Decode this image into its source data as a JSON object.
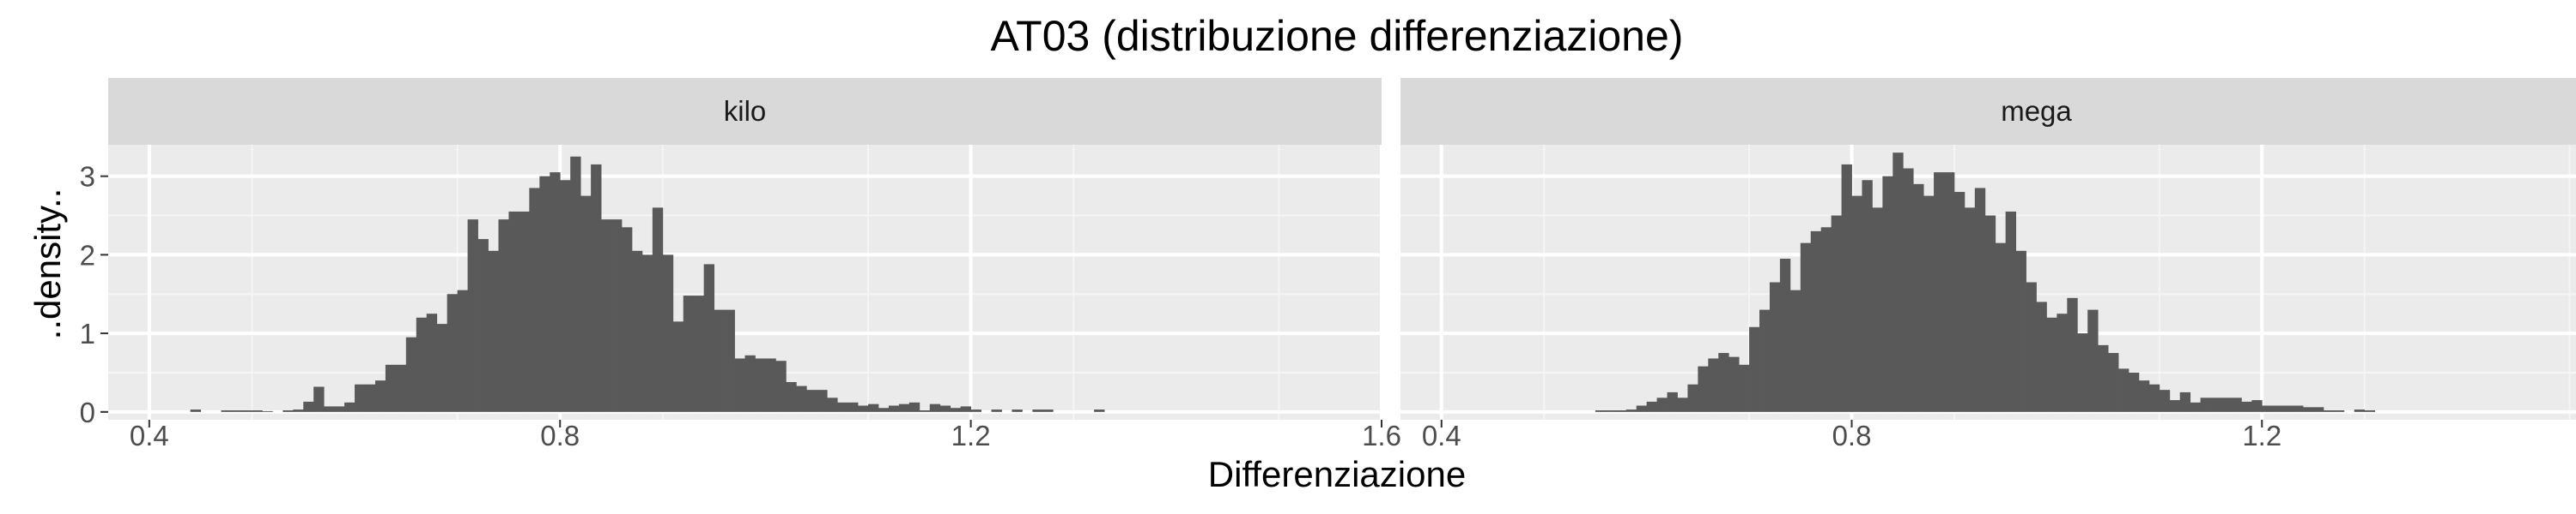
{
  "chart_data": {
    "type": "bar",
    "title": "AT03 (distribuzione differenziazione)",
    "xlabel": "Differenziazione",
    "ylabel": "..density..",
    "x_ticks": [
      "0.4",
      "0.8",
      "1.2",
      "1.6"
    ],
    "y_ticks": [
      "0",
      "1",
      "2",
      "3"
    ],
    "xlim": [
      0.36,
      1.6
    ],
    "ylim": [
      -0.1,
      3.4
    ],
    "bin_width": 0.01,
    "grid": true,
    "bar_color": "#595959",
    "panel_background": "#ebebeb",
    "strip_background": "#d9d9d9",
    "facets": [
      {
        "name": "kilo",
        "bins": [
          [
            0.44,
            0.03
          ],
          [
            0.47,
            0.02
          ],
          [
            0.48,
            0.02
          ],
          [
            0.49,
            0.02
          ],
          [
            0.5,
            0.02
          ],
          [
            0.51,
            0.01
          ],
          [
            0.53,
            0.02
          ],
          [
            0.54,
            0.03
          ],
          [
            0.55,
            0.13
          ],
          [
            0.56,
            0.32
          ],
          [
            0.57,
            0.07
          ],
          [
            0.58,
            0.07
          ],
          [
            0.59,
            0.12
          ],
          [
            0.6,
            0.35
          ],
          [
            0.61,
            0.35
          ],
          [
            0.62,
            0.4
          ],
          [
            0.63,
            0.6
          ],
          [
            0.64,
            0.6
          ],
          [
            0.65,
            0.95
          ],
          [
            0.66,
            1.2
          ],
          [
            0.67,
            1.25
          ],
          [
            0.68,
            1.12
          ],
          [
            0.69,
            1.5
          ],
          [
            0.7,
            1.55
          ],
          [
            0.71,
            2.45
          ],
          [
            0.72,
            2.2
          ],
          [
            0.73,
            2.05
          ],
          [
            0.74,
            2.45
          ],
          [
            0.75,
            2.55
          ],
          [
            0.76,
            2.55
          ],
          [
            0.77,
            2.85
          ],
          [
            0.78,
            3.0
          ],
          [
            0.79,
            3.05
          ],
          [
            0.8,
            2.95
          ],
          [
            0.81,
            3.25
          ],
          [
            0.82,
            2.75
          ],
          [
            0.83,
            3.15
          ],
          [
            0.84,
            2.45
          ],
          [
            0.85,
            2.45
          ],
          [
            0.86,
            2.35
          ],
          [
            0.87,
            2.05
          ],
          [
            0.88,
            2.0
          ],
          [
            0.89,
            2.6
          ],
          [
            0.9,
            2.0
          ],
          [
            0.91,
            1.15
          ],
          [
            0.92,
            1.48
          ],
          [
            0.93,
            1.48
          ],
          [
            0.94,
            1.88
          ],
          [
            0.95,
            1.3
          ],
          [
            0.96,
            1.3
          ],
          [
            0.97,
            0.68
          ],
          [
            0.98,
            0.72
          ],
          [
            0.99,
            0.68
          ],
          [
            1.0,
            0.68
          ],
          [
            1.01,
            0.65
          ],
          [
            1.02,
            0.38
          ],
          [
            1.03,
            0.33
          ],
          [
            1.04,
            0.28
          ],
          [
            1.05,
            0.28
          ],
          [
            1.06,
            0.18
          ],
          [
            1.07,
            0.12
          ],
          [
            1.08,
            0.12
          ],
          [
            1.09,
            0.08
          ],
          [
            1.1,
            0.1
          ],
          [
            1.11,
            0.05
          ],
          [
            1.12,
            0.08
          ],
          [
            1.13,
            0.1
          ],
          [
            1.14,
            0.12
          ],
          [
            1.15,
            0.02
          ],
          [
            1.16,
            0.1
          ],
          [
            1.17,
            0.08
          ],
          [
            1.18,
            0.05
          ],
          [
            1.19,
            0.07
          ],
          [
            1.2,
            0.03
          ],
          [
            1.22,
            0.03
          ],
          [
            1.24,
            0.03
          ],
          [
            1.26,
            0.03
          ],
          [
            1.27,
            0.03
          ],
          [
            1.32,
            0.03
          ]
        ]
      },
      {
        "name": "mega",
        "bins": [
          [
            0.55,
            0.02
          ],
          [
            0.56,
            0.02
          ],
          [
            0.57,
            0.02
          ],
          [
            0.58,
            0.03
          ],
          [
            0.59,
            0.08
          ],
          [
            0.6,
            0.13
          ],
          [
            0.61,
            0.18
          ],
          [
            0.62,
            0.25
          ],
          [
            0.63,
            0.18
          ],
          [
            0.64,
            0.35
          ],
          [
            0.65,
            0.58
          ],
          [
            0.66,
            0.68
          ],
          [
            0.67,
            0.75
          ],
          [
            0.68,
            0.7
          ],
          [
            0.69,
            0.6
          ],
          [
            0.7,
            1.08
          ],
          [
            0.71,
            1.3
          ],
          [
            0.72,
            1.65
          ],
          [
            0.73,
            1.95
          ],
          [
            0.74,
            1.55
          ],
          [
            0.75,
            2.15
          ],
          [
            0.76,
            2.3
          ],
          [
            0.77,
            2.35
          ],
          [
            0.78,
            2.5
          ],
          [
            0.79,
            3.15
          ],
          [
            0.8,
            2.75
          ],
          [
            0.81,
            2.95
          ],
          [
            0.82,
            2.6
          ],
          [
            0.83,
            3.0
          ],
          [
            0.84,
            3.3
          ],
          [
            0.85,
            3.1
          ],
          [
            0.86,
            2.9
          ],
          [
            0.87,
            2.75
          ],
          [
            0.88,
            3.05
          ],
          [
            0.89,
            3.05
          ],
          [
            0.9,
            2.8
          ],
          [
            0.91,
            2.6
          ],
          [
            0.92,
            2.85
          ],
          [
            0.93,
            2.5
          ],
          [
            0.94,
            2.15
          ],
          [
            0.95,
            2.55
          ],
          [
            0.96,
            2.05
          ],
          [
            0.97,
            1.65
          ],
          [
            0.98,
            1.4
          ],
          [
            0.99,
            1.2
          ],
          [
            1.0,
            1.25
          ],
          [
            1.01,
            1.45
          ],
          [
            1.02,
            1.0
          ],
          [
            1.03,
            1.3
          ],
          [
            1.04,
            0.85
          ],
          [
            1.05,
            0.75
          ],
          [
            1.06,
            0.55
          ],
          [
            1.07,
            0.5
          ],
          [
            1.08,
            0.4
          ],
          [
            1.09,
            0.35
          ],
          [
            1.1,
            0.28
          ],
          [
            1.11,
            0.15
          ],
          [
            1.12,
            0.25
          ],
          [
            1.13,
            0.12
          ],
          [
            1.14,
            0.18
          ],
          [
            1.15,
            0.18
          ],
          [
            1.16,
            0.18
          ],
          [
            1.17,
            0.18
          ],
          [
            1.18,
            0.13
          ],
          [
            1.19,
            0.15
          ],
          [
            1.2,
            0.08
          ],
          [
            1.21,
            0.08
          ],
          [
            1.22,
            0.08
          ],
          [
            1.23,
            0.08
          ],
          [
            1.24,
            0.06
          ],
          [
            1.25,
            0.06
          ],
          [
            1.26,
            0.02
          ],
          [
            1.27,
            0.02
          ],
          [
            1.29,
            0.03
          ],
          [
            1.3,
            0.02
          ]
        ]
      }
    ]
  }
}
